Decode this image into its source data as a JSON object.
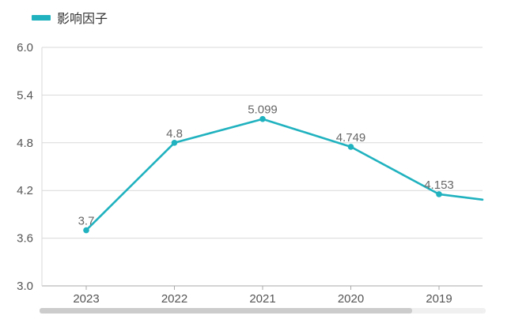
{
  "chart_data": {
    "type": "line",
    "categories": [
      "2023",
      "2022",
      "2021",
      "2020",
      "2019"
    ],
    "series": [
      {
        "name": "影响因子",
        "values": [
          3.7,
          4.8,
          5.099,
          4.749,
          4.153
        ],
        "labels": [
          "3.7",
          "4.8",
          "5.099",
          "4.749",
          "4.153"
        ],
        "color": "#20b2bf"
      }
    ],
    "continuation_value": 4.09,
    "yticks": [
      "6.0",
      "5.4",
      "4.8",
      "4.2",
      "3.6",
      "3.0"
    ],
    "ylim": [
      3.0,
      6.0
    ],
    "grid": true,
    "legend_position": "top-left",
    "title": "",
    "xlabel": "",
    "ylabel": "",
    "colors": {
      "series": "#20b2bf",
      "grid": "#d9d9d9",
      "axis": "#aaaaaa",
      "scrollbar_track": "#f0f0f0",
      "scrollbar_thumb": "#cccccc"
    }
  }
}
